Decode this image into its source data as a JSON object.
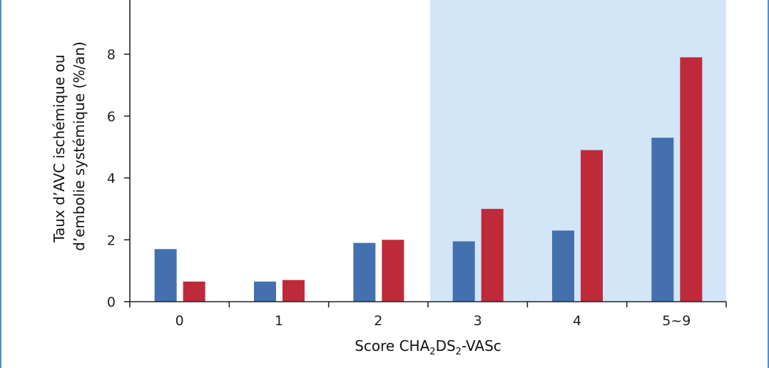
{
  "chart_data": {
    "type": "bar",
    "xlabel_parts": {
      "a": "Score CHA",
      "sub1": "2",
      "b": "DS",
      "sub2": "2",
      "c": "-VASc"
    },
    "ylabel_lines": [
      "Taux d’AVC ischémique ou",
      "d’embolie systémique (%/an)"
    ],
    "categories": [
      "0",
      "1",
      "2",
      "3",
      "4",
      "5~9"
    ],
    "series": [
      {
        "values": [
          1.7,
          0.65,
          1.9,
          1.95,
          2.3,
          5.3
        ],
        "color": "#4470b0"
      },
      {
        "values": [
          0.65,
          0.7,
          2.0,
          3.0,
          4.9,
          7.9
        ],
        "color": "#bf2a3b"
      }
    ],
    "ylim": [
      0,
      10
    ],
    "yticks": [
      0,
      2,
      4,
      6,
      8
    ],
    "highlight": {
      "from_category": "3",
      "to_category": "5~9",
      "color": "#d3e6f8"
    },
    "grid": false,
    "legend": "none"
  }
}
